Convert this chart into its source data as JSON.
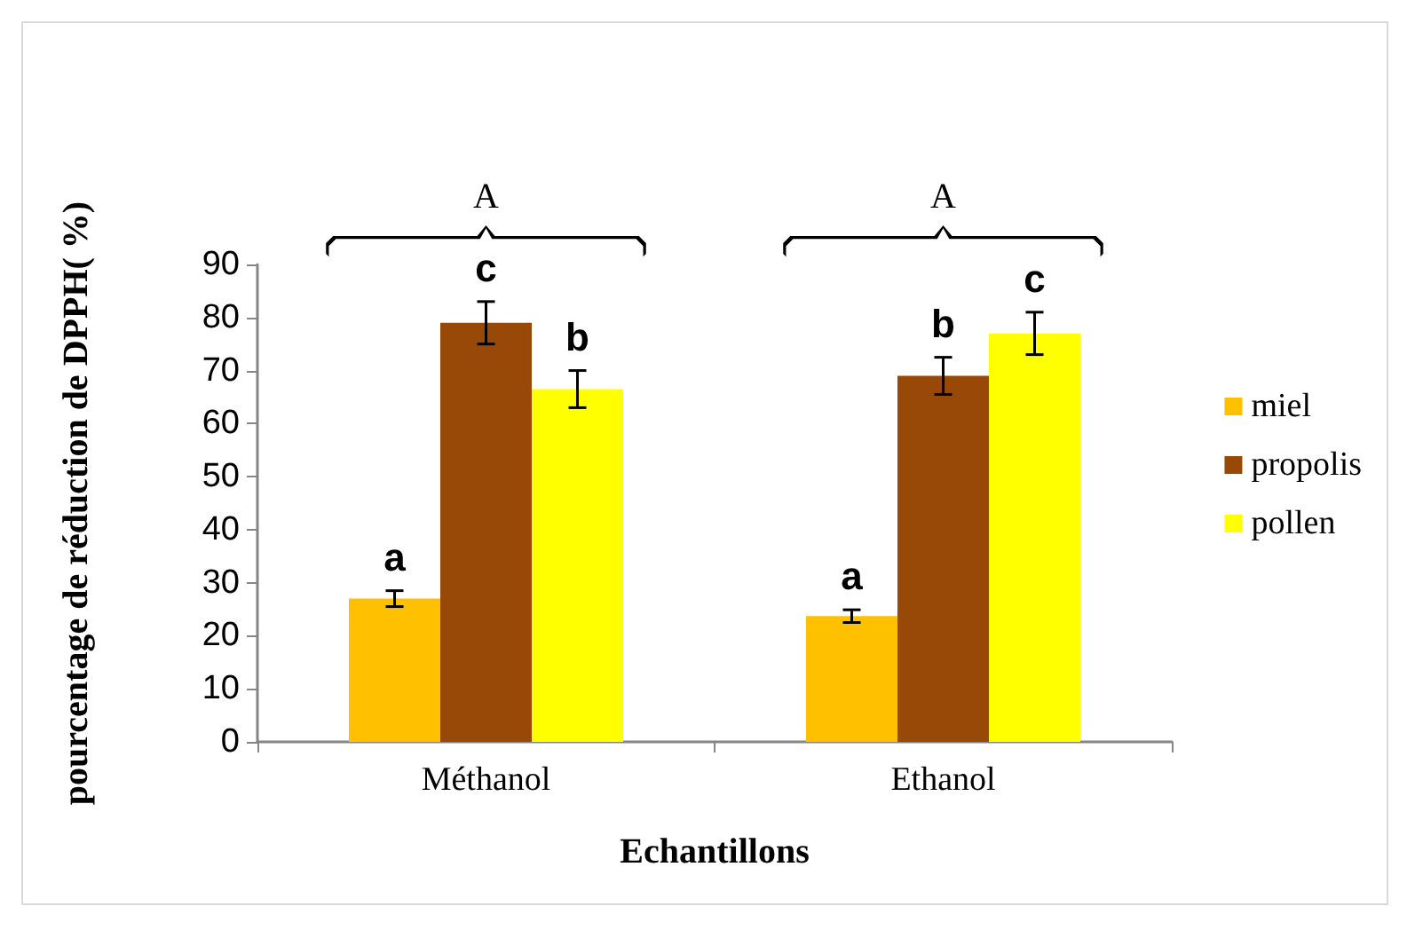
{
  "chart_data": {
    "type": "bar",
    "xlabel": "Echantillons",
    "ylabel": "pourcentage de réduction de DPPH( %)",
    "categories": [
      "Méthanol",
      "Ethanol"
    ],
    "series": [
      {
        "name": "miel",
        "color": "#ffc000",
        "values": [
          27,
          23.7
        ],
        "errors": [
          1.5,
          1.2
        ],
        "value_labels": [
          "a",
          "a"
        ]
      },
      {
        "name": "propolis",
        "color": "#984807",
        "values": [
          79,
          69
        ],
        "errors": [
          4,
          3.5
        ],
        "value_labels": [
          "c",
          "b"
        ]
      },
      {
        "name": "pollen",
        "color": "#ffff00",
        "values": [
          66.5,
          77
        ],
        "errors": [
          3.5,
          4
        ],
        "value_labels": [
          "b",
          "c"
        ]
      }
    ],
    "ylim": [
      0,
      90
    ],
    "yticks": [
      0,
      10,
      20,
      30,
      40,
      50,
      60,
      70,
      80,
      90
    ],
    "grid": false,
    "legend": "right",
    "annotations": [
      "A",
      "A"
    ]
  }
}
